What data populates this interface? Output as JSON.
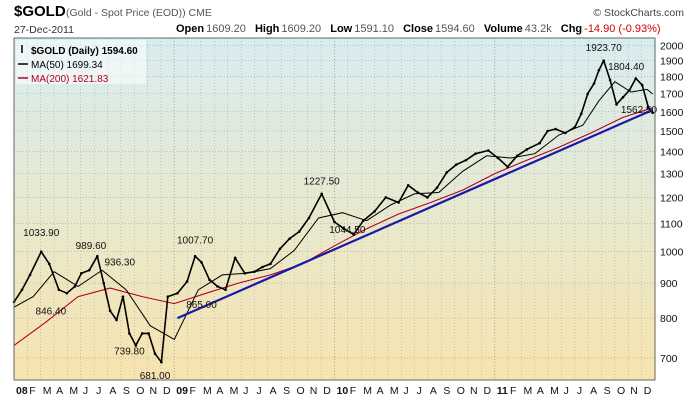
{
  "header": {
    "symbol": "$GOLD",
    "description": "(Gold - Spot Price (EOD)) CME",
    "brand": "© StockCharts.com",
    "date": "27-Dec-2011",
    "open_label": "Open",
    "open": "1609.20",
    "high_label": "High",
    "high": "1609.20",
    "low_label": "Low",
    "low": "1591.10",
    "close_label": "Close",
    "close": "1594.60",
    "volume_label": "Volume",
    "volume": "43.2k",
    "chg_label": "Chg",
    "chg": "-14.90 (-0.93%)"
  },
  "colors": {
    "price": "#000000",
    "ma50": "#000000",
    "ma200": "#b00020",
    "trendline": "#1a1aa8",
    "grid": "#9e9e9e",
    "bg_top": "#d8edf0",
    "bg_bottom": "#f7e4ae"
  },
  "chart_data": {
    "type": "line",
    "title": "$GOLD (Daily) 1594.60",
    "yscale": "log",
    "ylim": [
      650,
      2050
    ],
    "yticks": [
      700,
      800,
      900,
      1000,
      1100,
      1200,
      1300,
      1400,
      1500,
      1600,
      1700,
      1800,
      1900,
      2000
    ],
    "xlim": [
      2008.0,
      2012.0
    ],
    "xticks": [
      {
        "t": 2008.0,
        "label": "08",
        "bold": true
      },
      {
        "t": 2008.083,
        "label": "F"
      },
      {
        "t": 2008.167,
        "label": "M"
      },
      {
        "t": 2008.25,
        "label": "A"
      },
      {
        "t": 2008.333,
        "label": "M"
      },
      {
        "t": 2008.417,
        "label": "J"
      },
      {
        "t": 2008.5,
        "label": "J"
      },
      {
        "t": 2008.583,
        "label": "A"
      },
      {
        "t": 2008.667,
        "label": "S"
      },
      {
        "t": 2008.75,
        "label": "O"
      },
      {
        "t": 2008.833,
        "label": "N"
      },
      {
        "t": 2008.917,
        "label": "D"
      },
      {
        "t": 2009.0,
        "label": "09",
        "bold": true
      },
      {
        "t": 2009.083,
        "label": "F"
      },
      {
        "t": 2009.167,
        "label": "M"
      },
      {
        "t": 2009.25,
        "label": "A"
      },
      {
        "t": 2009.333,
        "label": "M"
      },
      {
        "t": 2009.417,
        "label": "J"
      },
      {
        "t": 2009.5,
        "label": "J"
      },
      {
        "t": 2009.583,
        "label": "A"
      },
      {
        "t": 2009.667,
        "label": "S"
      },
      {
        "t": 2009.75,
        "label": "O"
      },
      {
        "t": 2009.833,
        "label": "N"
      },
      {
        "t": 2009.917,
        "label": "D"
      },
      {
        "t": 2010.0,
        "label": "10",
        "bold": true
      },
      {
        "t": 2010.083,
        "label": "F"
      },
      {
        "t": 2010.167,
        "label": "M"
      },
      {
        "t": 2010.25,
        "label": "A"
      },
      {
        "t": 2010.333,
        "label": "M"
      },
      {
        "t": 2010.417,
        "label": "J"
      },
      {
        "t": 2010.5,
        "label": "J"
      },
      {
        "t": 2010.583,
        "label": "A"
      },
      {
        "t": 2010.667,
        "label": "S"
      },
      {
        "t": 2010.75,
        "label": "O"
      },
      {
        "t": 2010.833,
        "label": "N"
      },
      {
        "t": 2010.917,
        "label": "D"
      },
      {
        "t": 2011.0,
        "label": "11",
        "bold": true
      },
      {
        "t": 2011.083,
        "label": "F"
      },
      {
        "t": 2011.167,
        "label": "M"
      },
      {
        "t": 2011.25,
        "label": "A"
      },
      {
        "t": 2011.333,
        "label": "M"
      },
      {
        "t": 2011.417,
        "label": "J"
      },
      {
        "t": 2011.5,
        "label": "J"
      },
      {
        "t": 2011.583,
        "label": "A"
      },
      {
        "t": 2011.667,
        "label": "S"
      },
      {
        "t": 2011.75,
        "label": "O"
      },
      {
        "t": 2011.833,
        "label": "N"
      },
      {
        "t": 2011.917,
        "label": "D"
      }
    ],
    "series": [
      {
        "name": "$GOLD (Daily) 1594.60",
        "x": [
          2008.0,
          2008.05,
          2008.1,
          2008.17,
          2008.22,
          2008.28,
          2008.33,
          2008.38,
          2008.42,
          2008.47,
          2008.52,
          2008.56,
          2008.6,
          2008.64,
          2008.68,
          2008.72,
          2008.76,
          2008.8,
          2008.84,
          2008.88,
          2008.92,
          2008.96,
          2009.02,
          2009.08,
          2009.13,
          2009.17,
          2009.22,
          2009.27,
          2009.32,
          2009.38,
          2009.44,
          2009.5,
          2009.55,
          2009.6,
          2009.66,
          2009.72,
          2009.78,
          2009.84,
          2009.92,
          2010.0,
          2010.06,
          2010.12,
          2010.18,
          2010.25,
          2010.32,
          2010.4,
          2010.46,
          2010.52,
          2010.58,
          2010.64,
          2010.7,
          2010.76,
          2010.82,
          2010.88,
          2010.96,
          2011.02,
          2011.08,
          2011.14,
          2011.2,
          2011.28,
          2011.33,
          2011.38,
          2011.44,
          2011.5,
          2011.54,
          2011.58,
          2011.62,
          2011.65,
          2011.68,
          2011.72,
          2011.76,
          2011.8,
          2011.84,
          2011.88,
          2011.92,
          2011.96,
          2011.985
        ],
        "values": [
          845,
          880,
          925,
          1000,
          960,
          880,
          870,
          890,
          930,
          940,
          985,
          900,
          820,
          795,
          860,
          760,
          730,
          760,
          760,
          710,
          690,
          860,
          870,
          905,
          985,
          965,
          910,
          890,
          880,
          980,
          930,
          935,
          950,
          960,
          1010,
          1045,
          1070,
          1120,
          1215,
          1105,
          1080,
          1060,
          1110,
          1145,
          1200,
          1180,
          1250,
          1220,
          1200,
          1240,
          1305,
          1340,
          1360,
          1390,
          1405,
          1370,
          1330,
          1380,
          1410,
          1440,
          1500,
          1510,
          1490,
          1520,
          1590,
          1700,
          1760,
          1840,
          1900,
          1780,
          1640,
          1680,
          1720,
          1790,
          1750,
          1620,
          1594.6
        ]
      },
      {
        "name": "MA(50) 1699.34",
        "x": [
          2008.0,
          2008.12,
          2008.25,
          2008.4,
          2008.55,
          2008.7,
          2008.85,
          2009.0,
          2009.15,
          2009.3,
          2009.45,
          2009.6,
          2009.75,
          2009.9,
          2010.05,
          2010.2,
          2010.35,
          2010.5,
          2010.65,
          2010.8,
          2010.95,
          2011.1,
          2011.25,
          2011.4,
          2011.55,
          2011.65,
          2011.75,
          2011.85,
          2011.95,
          2011.985
        ],
        "values": [
          830,
          860,
          935,
          890,
          940,
          880,
          780,
          745,
          880,
          925,
          930,
          945,
          1005,
          1120,
          1140,
          1110,
          1170,
          1215,
          1220,
          1310,
          1380,
          1370,
          1390,
          1480,
          1530,
          1660,
          1770,
          1710,
          1725,
          1699.34
        ]
      },
      {
        "name": "MA(200) 1621.83",
        "x": [
          2008.0,
          2008.2,
          2008.4,
          2008.6,
          2008.8,
          2009.0,
          2009.2,
          2009.4,
          2009.6,
          2009.8,
          2010.0,
          2010.2,
          2010.4,
          2010.6,
          2010.8,
          2011.0,
          2011.2,
          2011.4,
          2011.6,
          2011.8,
          2011.985
        ],
        "values": [
          730,
          790,
          860,
          885,
          860,
          840,
          870,
          900,
          925,
          960,
          1020,
          1080,
          1135,
          1180,
          1230,
          1300,
          1360,
          1420,
          1490,
          1570,
          1621.83
        ]
      }
    ],
    "trendline": {
      "x": [
        2009.02,
        2011.985
      ],
      "values": [
        800,
        1610
      ]
    },
    "annotations": [
      {
        "x": 2008.17,
        "y": 1033.9,
        "label": "1033.90"
      },
      {
        "x": 2008.23,
        "y": 846.4,
        "label": "846.40"
      },
      {
        "x": 2008.48,
        "y": 989.6,
        "label": "989.60"
      },
      {
        "x": 2008.66,
        "y": 936.3,
        "label": "936.30"
      },
      {
        "x": 2008.72,
        "y": 739.8,
        "label": "739.80"
      },
      {
        "x": 2008.88,
        "y": 681.0,
        "label": "681.00"
      },
      {
        "x": 2009.13,
        "y": 1007.7,
        "label": "1007.70"
      },
      {
        "x": 2009.17,
        "y": 865.0,
        "label": "865.00"
      },
      {
        "x": 2009.92,
        "y": 1227.5,
        "label": "1227.50"
      },
      {
        "x": 2010.08,
        "y": 1044.5,
        "label": "1044.50"
      },
      {
        "x": 2011.68,
        "y": 1923.7,
        "label": "1923.70"
      },
      {
        "x": 2011.82,
        "y": 1804.4,
        "label": "1804.40"
      },
      {
        "x": 2011.9,
        "y": 1562.5,
        "label": "1562.50"
      }
    ],
    "legend": [
      {
        "label": "$GOLD (Daily) 1594.60",
        "color": "#000000",
        "marker": "bar"
      },
      {
        "label": "MA(50) 1699.34",
        "color": "#000000",
        "marker": "line"
      },
      {
        "label": "MA(200) 1621.83",
        "color": "#b00020",
        "marker": "line"
      }
    ],
    "legend_position": "top-left",
    "grid": true
  }
}
